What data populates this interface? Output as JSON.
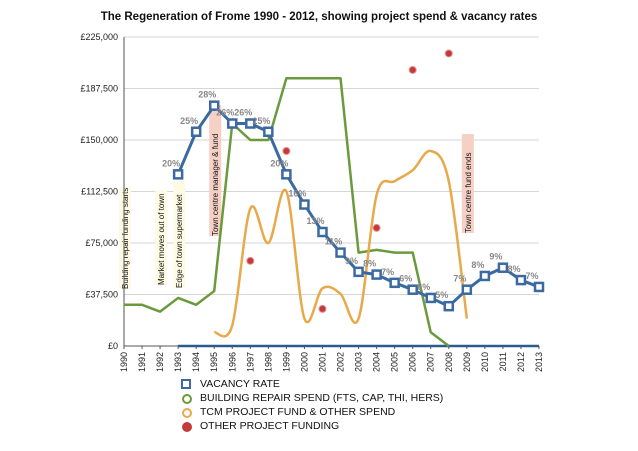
{
  "chart_data": {
    "type": "line",
    "title": "The Regeneration of Frome 1990 - 2012, showing project spend & vacancy rates",
    "xlabel": "",
    "ylabel": "",
    "categories": [
      "1990",
      "1991",
      "1992",
      "1993",
      "1994",
      "1995",
      "1996",
      "1997",
      "1998",
      "1999",
      "2000",
      "2001",
      "2002",
      "2003",
      "2004",
      "2005",
      "2006",
      "2007",
      "2008",
      "2009",
      "2010",
      "2011",
      "2012",
      "2013"
    ],
    "ylim": [
      0,
      225000
    ],
    "yticks": [
      "£0",
      "£37,500",
      "£75,000",
      "£112,500",
      "£150,000",
      "£187,500",
      "£225,000"
    ],
    "ytick_values": [
      0,
      37500,
      75000,
      112500,
      150000,
      187500,
      225000
    ],
    "grid": true,
    "legend_position": "bottom",
    "series": [
      {
        "name": "VACANCY RATE",
        "color": "#3a6aa0",
        "marker": "square",
        "x": [
          1993,
          1994,
          1995,
          1996,
          1997,
          1998,
          1999,
          2000,
          2001,
          2002,
          2003,
          2004,
          2005,
          2006,
          2007,
          2008,
          2009,
          2010,
          2011,
          2012,
          2013
        ],
        "values": [
          125000,
          156000,
          175000,
          162000,
          162000,
          156000,
          125000,
          103000,
          83000,
          68000,
          54000,
          52000,
          46000,
          41000,
          35000,
          29000,
          41000,
          51000,
          57000,
          48000,
          43000
        ],
        "labels": [
          "20%",
          "25%",
          "28%",
          "26%",
          "26%",
          "25%",
          "20%",
          "16%",
          "13%",
          "11%",
          "9%",
          "8%",
          "7%",
          "6%",
          "6%",
          "5%",
          "7%",
          "8%",
          "9%",
          "8%",
          "7%"
        ]
      },
      {
        "name": "BUILDING REPAIR SPEND (FTS, CAP, THI, HERS)",
        "color": "#6a9a3c",
        "marker": "circle",
        "x": [
          1990,
          1991,
          1992,
          1993,
          1994,
          1995,
          1996,
          1997,
          1998,
          1999,
          2000,
          2001,
          2002,
          2003,
          2004,
          2005,
          2006,
          2007,
          2008
        ],
        "values": [
          30000,
          30000,
          25000,
          35000,
          30000,
          40000,
          162000,
          150000,
          150000,
          195000,
          195000,
          195000,
          195000,
          68000,
          70000,
          68000,
          68000,
          10000,
          0
        ],
        "smooth": false
      },
      {
        "name": "TCM PROJECT FUND & OTHER SPEND",
        "color": "#e8a94a",
        "marker": "circle",
        "x": [
          1995,
          1996,
          1997,
          1998,
          1999,
          2000,
          2001,
          2002,
          2003,
          2004,
          2005,
          2006,
          2007,
          2008,
          2009
        ],
        "values": [
          10000,
          15000,
          100000,
          75000,
          112500,
          20000,
          42000,
          38000,
          20000,
          110000,
          120000,
          128000,
          142000,
          120000,
          20000
        ],
        "smooth": true
      },
      {
        "name": "OTHER PROJECT FUNDING",
        "color": "#c23a3a",
        "marker": "circle",
        "scatter": true,
        "x": [
          1997,
          1999,
          2001,
          2004,
          2006,
          2008
        ],
        "values": [
          62000,
          142000,
          27000,
          86000,
          201000,
          213000
        ]
      }
    ],
    "baseline_series": {
      "color": "#2e5c8a",
      "x_start": 1993,
      "x_end": 2013,
      "value": 0
    },
    "annotations": [
      {
        "text": "Building repair funding starts",
        "x": 1990,
        "box_color": "#fdfbe4"
      },
      {
        "text": "Market moves out of town",
        "x": 1992,
        "box_color": "#fdfbe4"
      },
      {
        "text": "Edge of town supermarket",
        "x": 1993,
        "box_color": "#fdfbe4"
      },
      {
        "text": "Town centre manager & fund",
        "x": 1995,
        "box_color": "#f6cfc5"
      },
      {
        "text": "Town centre fund ends",
        "x": 2009,
        "box_color": "#f6cfc5"
      }
    ]
  }
}
